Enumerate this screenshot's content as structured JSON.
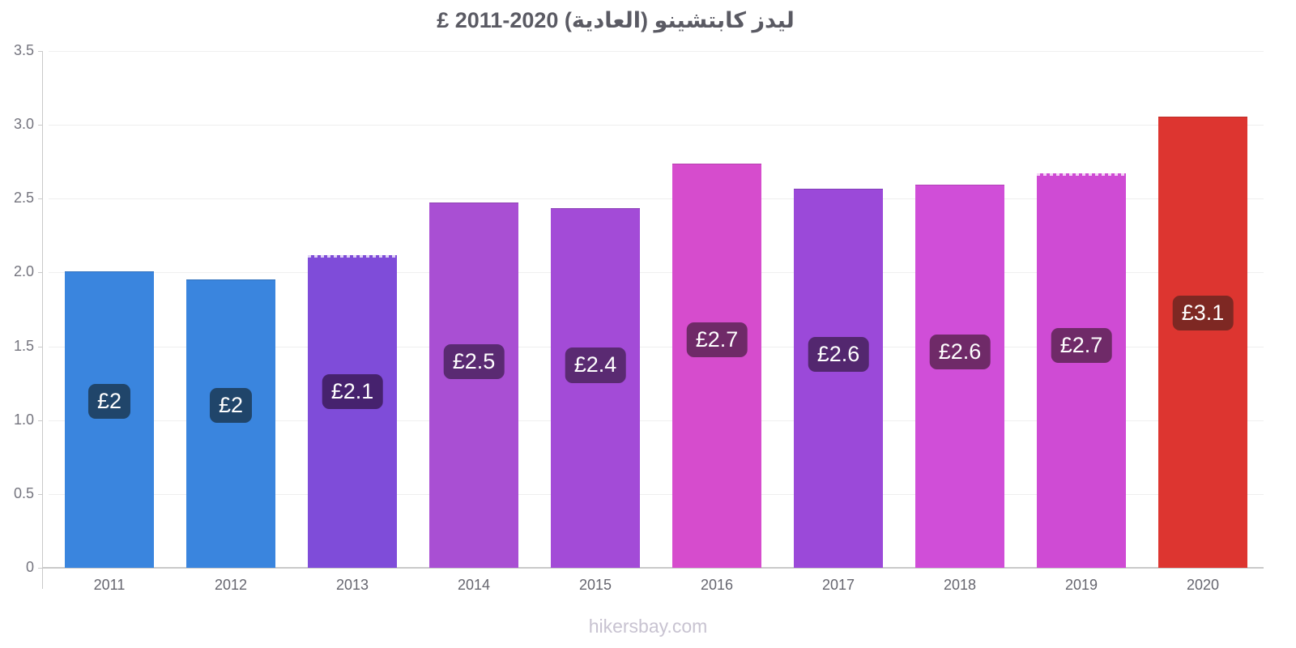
{
  "title": "ليدز كابتشينو (العادية) 2020-2011 £",
  "footer": "hikersbay.com",
  "colors": {
    "axis": "#c9c9c9",
    "gridline": "#efefef",
    "title_text": "#5a5a63",
    "tick_text": "#6d6d76",
    "watermark_text": "#c8c3d1"
  },
  "chart_data": {
    "type": "bar",
    "title": "ليدز كابتشينو (العادية) 2020-2011 £",
    "xlabel": "",
    "ylabel": "",
    "categories": [
      "2011",
      "2012",
      "2013",
      "2014",
      "2015",
      "2016",
      "2017",
      "2018",
      "2019",
      "2020"
    ],
    "values": [
      2.0,
      1.95,
      2.12,
      2.47,
      2.43,
      2.73,
      2.56,
      2.59,
      2.67,
      3.05
    ],
    "bar_labels": [
      "£2",
      "£2",
      "£2.1",
      "£2.5",
      "£2.4",
      "£2.7",
      "£2.6",
      "£2.6",
      "£2.7",
      "£3.1"
    ],
    "bar_colors": [
      "#3a85de",
      "#3a85de",
      "#7f4cd9",
      "#a94fd3",
      "#a34bd7",
      "#d64ccd",
      "#9b49d9",
      "#d04ed8",
      "#cf4bd4",
      "#dd3530"
    ],
    "badge_colors": [
      "#20456a",
      "#20456a",
      "#46226e",
      "#5a2a72",
      "#5a2a72",
      "#6f2a68",
      "#53276f",
      "#6f2a68",
      "#6f2a68",
      "#7e2823"
    ],
    "estimated": [
      false,
      false,
      true,
      false,
      false,
      false,
      false,
      false,
      true,
      false
    ],
    "ylim": [
      0,
      3.5
    ],
    "yticks": [
      "3.5",
      "3.0",
      "2.5",
      "2.0",
      "1.5",
      "1.0",
      "0.5",
      "0"
    ],
    "grid": true,
    "legend": "none",
    "currency": "£"
  }
}
